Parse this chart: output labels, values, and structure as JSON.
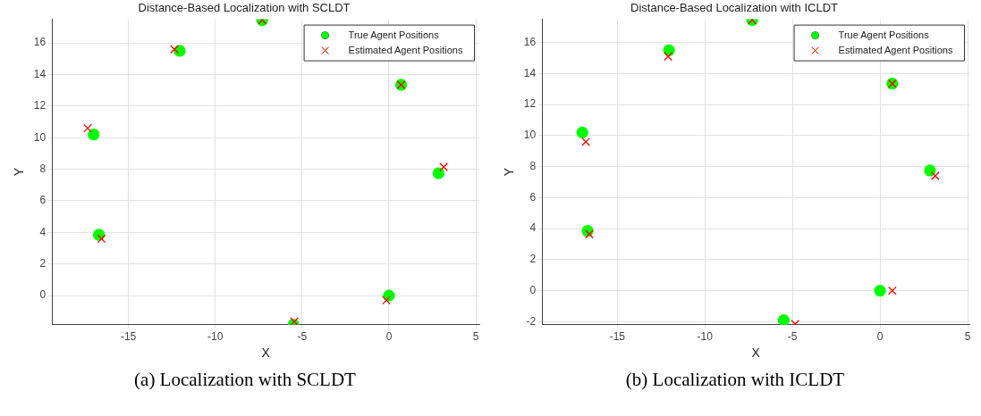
{
  "chart_data": [
    {
      "type": "scatter",
      "title": "Distance-Based Localization with SCLDT",
      "xlabel": "X",
      "ylabel": "Y",
      "xlim": [
        -19.4,
        5.2
      ],
      "ylim": [
        -1.85,
        17.5
      ],
      "xticks": [
        -15,
        -10,
        -5,
        0,
        5
      ],
      "yticks": [
        0,
        2,
        4,
        6,
        8,
        10,
        12,
        14,
        16
      ],
      "grid": true,
      "legend": "top right",
      "annotations": [
        "(a) Localization with SCLDT"
      ],
      "series": [
        {
          "name": "True Agent Positions",
          "color": "#00ff00",
          "marker": "circle",
          "x": [
            -7.3,
            -12.05,
            0.7,
            -17.0,
            2.85,
            -16.7,
            0,
            -5.5
          ],
          "values": [
            17.45,
            15.5,
            13.35,
            10.2,
            7.75,
            3.85,
            0,
            -1.85
          ]
        },
        {
          "name": "Estimated Agent Positions",
          "color": "#ff0000",
          "marker": "cross",
          "x": [
            -7.3,
            -12.35,
            0.7,
            -17.35,
            3.15,
            -16.55,
            -0.15,
            -5.45
          ],
          "values": [
            17.45,
            15.6,
            13.35,
            10.6,
            8.15,
            3.6,
            -0.3,
            -1.65
          ]
        }
      ]
    },
    {
      "type": "scatter",
      "title": "Distance-Based Localization with ICLDT",
      "xlabel": "X",
      "ylabel": "Y",
      "xlim": [
        -19.3,
        5.1
      ],
      "ylim": [
        -2.2,
        17.5
      ],
      "xticks": [
        -15,
        -10,
        -5,
        0,
        5
      ],
      "yticks": [
        -2,
        0,
        2,
        4,
        6,
        8,
        10,
        12,
        14,
        16
      ],
      "grid": true,
      "legend": "top right",
      "annotations": [
        "(b) Localization with ICLDT"
      ],
      "series": [
        {
          "name": "True Agent Positions",
          "color": "#00ff00",
          "marker": "circle",
          "x": [
            -7.3,
            -12.05,
            0.7,
            -17.0,
            2.85,
            -16.7,
            0,
            -5.5
          ],
          "values": [
            17.45,
            15.5,
            13.35,
            10.2,
            7.75,
            3.85,
            0,
            -1.9
          ]
        },
        {
          "name": "Estimated Agent Positions",
          "color": "#ff0000",
          "marker": "cross",
          "x": [
            -7.3,
            -12.1,
            0.7,
            -16.8,
            3.15,
            -16.6,
            0.7,
            -4.85
          ],
          "values": [
            17.45,
            15.1,
            13.35,
            9.6,
            7.4,
            3.65,
            0,
            -2.15
          ]
        }
      ]
    }
  ]
}
